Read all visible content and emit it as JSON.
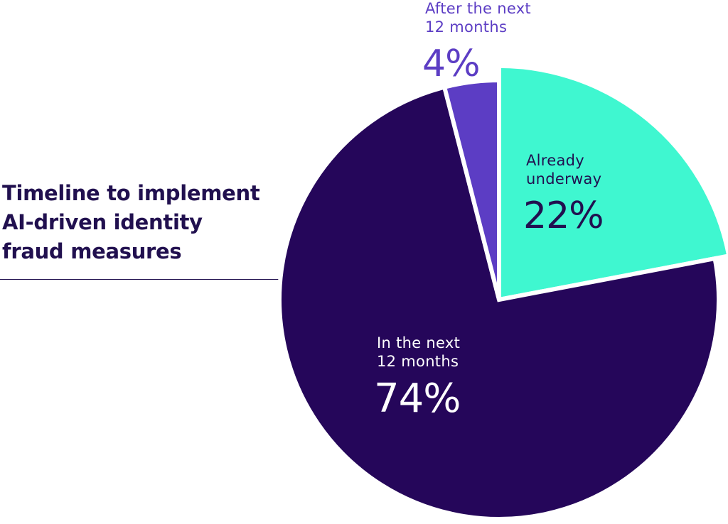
{
  "chart_data": {
    "type": "pie",
    "title": "Timeline to implement AI-driven identity fraud measures",
    "title_lines": [
      "Timeline to implement",
      "AI-driven identity",
      "fraud measures"
    ],
    "slices": [
      {
        "name": "Already underway",
        "label_lines": [
          "Already",
          "underway"
        ],
        "value": 22,
        "value_label": "22%",
        "color": "#3ff7d0",
        "text_color": "#21104f",
        "exploded": true
      },
      {
        "name": "In the next 12 months",
        "label_lines": [
          "In the next",
          "12 months"
        ],
        "value": 74,
        "value_label": "74%",
        "color": "#25065a",
        "text_color": "#ffffff",
        "exploded": false
      },
      {
        "name": "After the next 12 months",
        "label_lines": [
          "After the next",
          "12 months"
        ],
        "value": 4,
        "value_label": "4%",
        "color": "#5c3dc4",
        "text_color": "#5c3dc4",
        "exploded": false
      }
    ]
  }
}
